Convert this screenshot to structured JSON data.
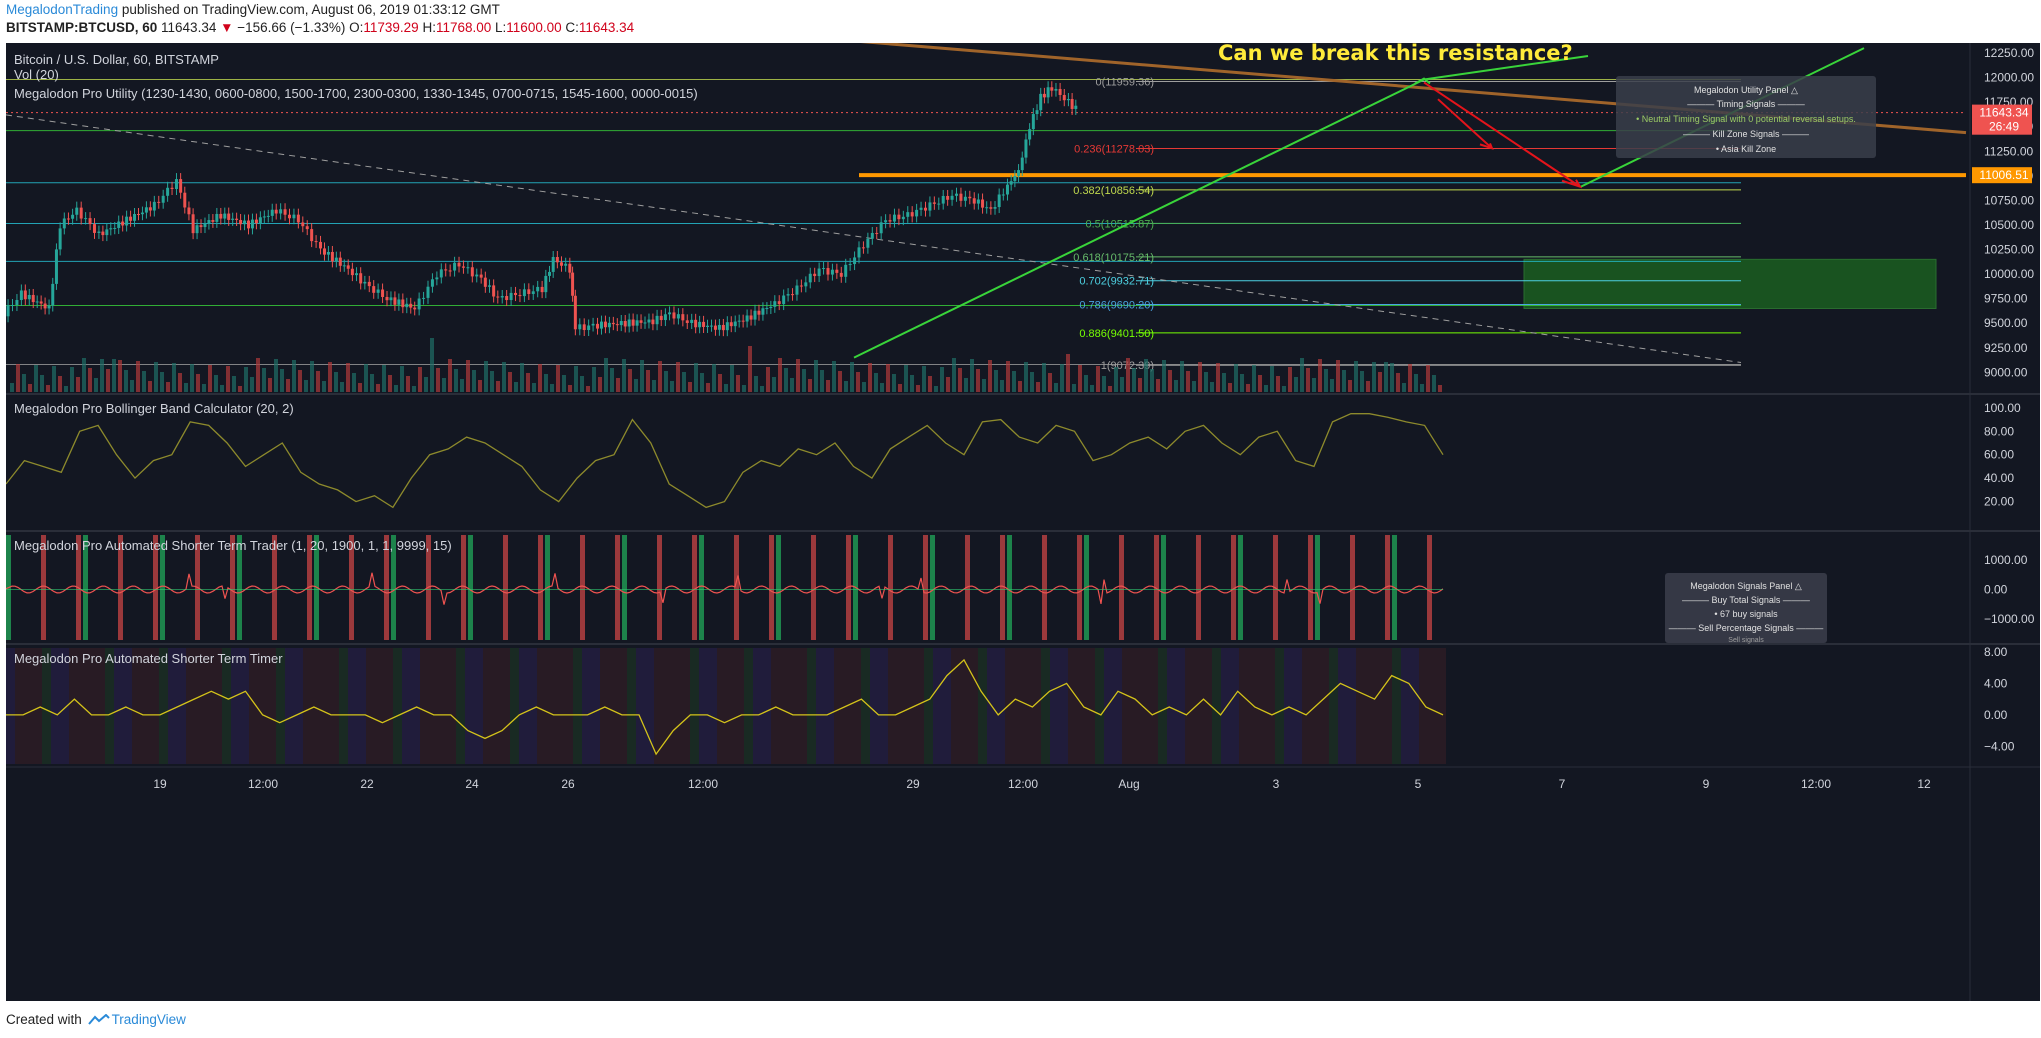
{
  "header": {
    "author": "MegalodonTrading",
    "published": "published on TradingView.com, August 06, 2019 01:33:12 GMT",
    "symbol": "BITSTAMP:BTCUSD, 60",
    "last": "11643.34",
    "arrow": "▼",
    "change": "−156.66 (−1.33%)",
    "o_label": "O:",
    "o_value": "11739.29",
    "h_label": "H:",
    "h_value": "11768.00",
    "l_label": "L:",
    "l_value": "11600.00",
    "c_label": "C:",
    "c_value": "11643.34"
  },
  "footer": {
    "created": "Created with",
    "brand": "TradingView"
  },
  "colors": {
    "background": "#131722",
    "up": "#26a69a",
    "down": "#ef5350",
    "accent_green": "#39d43a",
    "accent_red": "#e4141b",
    "orange": "#ff9800",
    "yellow_text": "#ffeb3b",
    "trend_brown": "#a0642a"
  },
  "chart_data": [
    {
      "type": "candlestick",
      "title": "Bitcoin / U.S. Dollar, 60, BITSTAMP",
      "vol_label": "Vol (20)",
      "indicator_label": "Megalodon Pro Utility (1230-1430, 0600-0800, 1500-1700, 2300-0300, 1330-1345, 0700-0715, 1545-1600, 0000-0015)",
      "annotation": "Can we break this resistance?",
      "ylim": [
        8800,
        12250
      ],
      "y_ticks": [
        "12250.00",
        "12000.00",
        "11750.00",
        "11500.00",
        "11250.00",
        "11000.00",
        "10750.00",
        "10500.00",
        "10250.00",
        "10000.00",
        "9750.00",
        "9500.00",
        "9250.00",
        "9000.00"
      ],
      "x_ticks": [
        "19",
        "12:00",
        "22",
        "24",
        "26",
        "12:00",
        "29",
        "12:00",
        "Aug",
        "3",
        "5",
        "7",
        "9",
        "12:00",
        "12"
      ],
      "price_series": [
        {
          "day": 17.0,
          "price": 9550
        },
        {
          "day": 17.4,
          "price": 9800
        },
        {
          "day": 17.9,
          "price": 9650
        },
        {
          "day": 18.1,
          "price": 10500
        },
        {
          "day": 18.4,
          "price": 10650
        },
        {
          "day": 18.8,
          "price": 10400
        },
        {
          "day": 19.3,
          "price": 10550
        },
        {
          "day": 19.8,
          "price": 10700
        },
        {
          "day": 20.2,
          "price": 10950
        },
        {
          "day": 20.5,
          "price": 10450
        },
        {
          "day": 21.0,
          "price": 10600
        },
        {
          "day": 21.5,
          "price": 10500
        },
        {
          "day": 22.0,
          "price": 10650
        },
        {
          "day": 22.4,
          "price": 10550
        },
        {
          "day": 22.8,
          "price": 10250
        },
        {
          "day": 23.3,
          "price": 10050
        },
        {
          "day": 23.6,
          "price": 9900
        },
        {
          "day": 24.0,
          "price": 9750
        },
        {
          "day": 24.5,
          "price": 9650
        },
        {
          "day": 24.9,
          "price": 10000
        },
        {
          "day": 25.3,
          "price": 10100
        },
        {
          "day": 25.7,
          "price": 9950
        },
        {
          "day": 26.0,
          "price": 9750
        },
        {
          "day": 26.4,
          "price": 9800
        },
        {
          "day": 26.8,
          "price": 9850
        },
        {
          "day": 27.0,
          "price": 10150
        },
        {
          "day": 27.3,
          "price": 10050
        },
        {
          "day": 27.4,
          "price": 9450
        },
        {
          "day": 27.8,
          "price": 9480
        },
        {
          "day": 28.3,
          "price": 9500
        },
        {
          "day": 28.8,
          "price": 9520
        },
        {
          "day": 29.1,
          "price": 9600
        },
        {
          "day": 29.5,
          "price": 9500
        },
        {
          "day": 30.0,
          "price": 9450
        },
        {
          "day": 30.5,
          "price": 9550
        },
        {
          "day": 31.0,
          "price": 9700
        },
        {
          "day": 31.4,
          "price": 9850
        },
        {
          "day": 31.8,
          "price": 10050
        },
        {
          "day": 32.2,
          "price": 10000
        },
        {
          "day": 32.6,
          "price": 10300
        },
        {
          "day": 33.0,
          "price": 10550
        },
        {
          "day": 33.4,
          "price": 10600
        },
        {
          "day": 33.8,
          "price": 10700
        },
        {
          "day": 34.2,
          "price": 10800
        },
        {
          "day": 34.6,
          "price": 10750
        },
        {
          "day": 34.9,
          "price": 10650
        },
        {
          "day": 35.2,
          "price": 10900
        },
        {
          "day": 35.4,
          "price": 11050
        },
        {
          "day": 35.6,
          "price": 11500
        },
        {
          "day": 35.8,
          "price": 11800
        },
        {
          "day": 36.0,
          "price": 11900
        },
        {
          "day": 36.3,
          "price": 11750
        },
        {
          "day": 36.5,
          "price": 11643
        }
      ],
      "fib_levels": [
        {
          "ratio": "0",
          "value": 11959.36,
          "label": "0(11959.36)",
          "color": "#9e9e9e"
        },
        {
          "ratio": "0.236",
          "value": 11278.03,
          "label": "0.236(11278.03)",
          "color": "#e53935"
        },
        {
          "ratio": "0.382",
          "value": 10856.54,
          "label": "0.382(10856.54)",
          "color": "#c0d94e"
        },
        {
          "ratio": "0.5",
          "value": 10515.87,
          "label": "0.5(10515.87)",
          "color": "#4caf50"
        },
        {
          "ratio": "0.618",
          "value": 10175.21,
          "label": "0.618(10175.21)",
          "color": "#66bb6a"
        },
        {
          "ratio": "0.702",
          "value": 9932.71,
          "label": "0.702(9932.71)",
          "color": "#4dd0e1"
        },
        {
          "ratio": "0.786",
          "value": 9690.2,
          "label": "0.786(9690.20)",
          "color": "#4aa3df"
        },
        {
          "ratio": "0.886",
          "value": 9401.5,
          "label": "0.886(9401.50)",
          "color": "#76ff03"
        },
        {
          "ratio": "1",
          "value": 9072.39,
          "label": "1(9072.39)",
          "color": "#9e9e9e"
        }
      ],
      "price_labels": [
        {
          "value": 11643.34,
          "text": "11643.34",
          "bg": "#ef5350"
        },
        {
          "value": 11500,
          "text": "26:49",
          "bg": "#ef5350"
        },
        {
          "value": 11006.51,
          "text": "11006.51",
          "bg": "#ff9800"
        }
      ],
      "support_level": 11006.51,
      "demand_zone": [
        9650,
        10150
      ]
    },
    {
      "type": "line",
      "title": "Megalodon Pro Bollinger Band Calculator (20, 2)",
      "ylim": [
        0,
        105
      ],
      "y_ticks": [
        "100.00",
        "80.00",
        "60.00",
        "40.00",
        "20.00"
      ],
      "values": [
        35,
        55,
        50,
        45,
        80,
        85,
        60,
        40,
        55,
        60,
        88,
        85,
        70,
        50,
        60,
        70,
        45,
        35,
        30,
        20,
        25,
        15,
        40,
        60,
        65,
        75,
        70,
        60,
        50,
        30,
        20,
        40,
        55,
        60,
        90,
        70,
        35,
        25,
        15,
        20,
        45,
        55,
        50,
        65,
        60,
        70,
        50,
        40,
        65,
        75,
        85,
        70,
        60,
        88,
        90,
        75,
        70,
        85,
        80,
        55,
        60,
        70,
        75,
        65,
        80,
        85,
        70,
        60,
        75,
        80,
        55,
        50,
        88,
        95,
        95,
        92,
        88,
        85,
        60
      ]
    },
    {
      "type": "area",
      "title": "Megalodon Pro Automated Shorter Term Trader (1, 20, 1900, 1, 1, 9999, 15)",
      "ylim": [
        -1650,
        1650
      ],
      "y_ticks": [
        "1000.00",
        "0.00",
        "−1000.00"
      ]
    },
    {
      "type": "line",
      "title": "Megalodon Pro Automated Shorter Term Timer",
      "ylim": [
        -6,
        8
      ],
      "y_ticks": [
        "8.00",
        "4.00",
        "0.00",
        "−4.00"
      ],
      "values": [
        0,
        0,
        1,
        0,
        2,
        0,
        0,
        1,
        0,
        0,
        1,
        2,
        3,
        2,
        3,
        0,
        -1,
        0,
        1,
        0,
        0,
        0,
        -1,
        0,
        1,
        0,
        0,
        -2,
        -3,
        -2,
        0,
        1,
        0,
        0,
        0,
        1,
        0,
        0,
        -5,
        -2,
        0,
        0,
        -1,
        0,
        0,
        1,
        0,
        0,
        0,
        1,
        2,
        0,
        0,
        1,
        2,
        5,
        7,
        3,
        0,
        2,
        1,
        3,
        4,
        1,
        0,
        3,
        2,
        0,
        1,
        0,
        2,
        0,
        3,
        1,
        0,
        1,
        0,
        2,
        4,
        3,
        2,
        5,
        4,
        1,
        0
      ]
    }
  ],
  "panels": {
    "utility": {
      "title": "Megalodon Utility Panel △",
      "timing": "——— Timing Signals ———",
      "neutral": "• Neutral Timing Signal with 0 potential reversal setups.",
      "kill": "——— Kill Zone Signals ———",
      "asia": "• Asia Kill Zone"
    },
    "signals": {
      "title": "Megalodon Signals Panel △",
      "buy_total": "——— Buy Total Signals ———",
      "buy_count": "• 67 buy signals",
      "sell_pct": "——— Sell Percentage Signals ———",
      "cut": "Sell signals"
    }
  }
}
